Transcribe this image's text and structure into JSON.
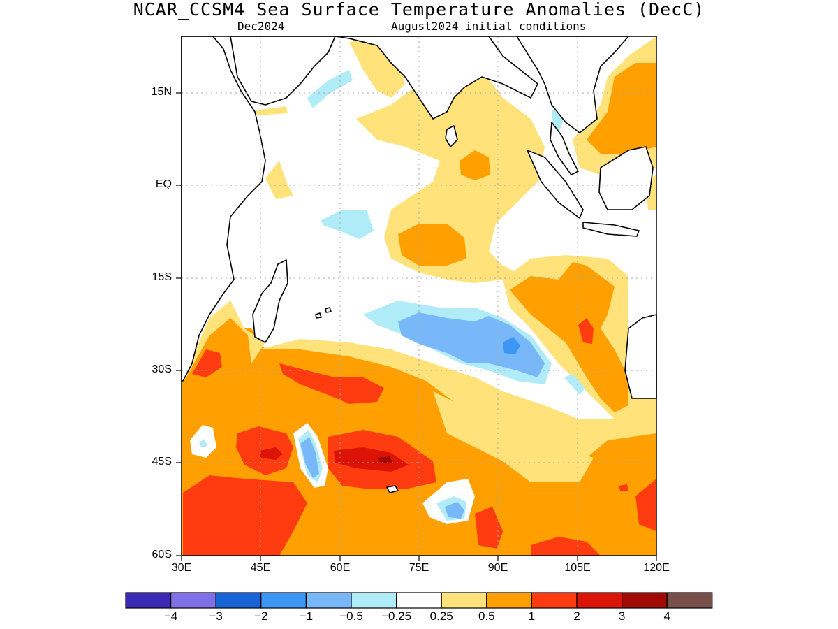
{
  "title": "NCAR_CCSM4 Sea Surface Temperature Anomalies (DecC)",
  "subtitle_left": "Dec2024",
  "subtitle_right": "August2024 initial conditions",
  "lat_labels": [
    "15N",
    "EQ",
    "15S",
    "30S",
    "45S",
    "60S"
  ],
  "lon_labels": [
    "30E",
    "45E",
    "60E",
    "75E",
    "90E",
    "105E",
    "120E"
  ],
  "colorbar": {
    "colors": [
      "#3a2ab4",
      "#8070e6",
      "#1664d6",
      "#3c96f4",
      "#78b8f8",
      "#b0ecf8",
      "#ffffff",
      "#ffe27a",
      "#ffa000",
      "#ff3c10",
      "#dc1408",
      "#a00a00",
      "#78504a"
    ],
    "labels": [
      "−4",
      "−3",
      "−2",
      "−1",
      "−0.5",
      "−0.25",
      "0.25",
      "0.5",
      "1",
      "2",
      "3",
      "4"
    ]
  },
  "palette": {
    "neg_025": "#b0ecf8",
    "neg_05": "#78b8f8",
    "neg_1": "#3c96f4",
    "pos_025": "#ffe27a",
    "pos_05": "#ffa000",
    "pos_1": "#ff3c10",
    "pos_2": "#dc1408",
    "pos_3": "#a00a00"
  }
}
